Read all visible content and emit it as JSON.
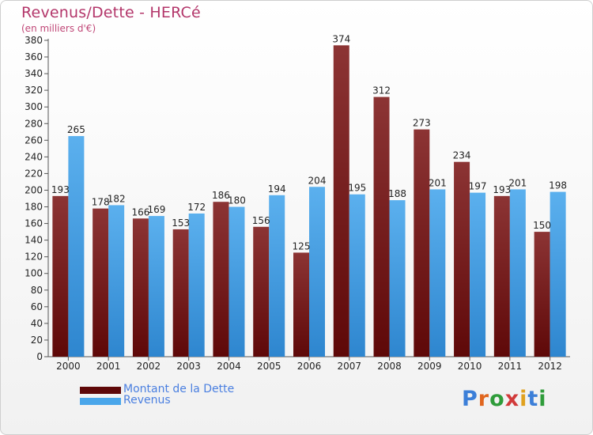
{
  "title": "Revenus/Dette - HERCé",
  "subtitle": "(en milliers d'€)",
  "logo": {
    "letters": [
      "P",
      "r",
      "o",
      "x",
      "i",
      "t",
      "i"
    ],
    "colors": [
      "#3c7fd8",
      "#e0661f",
      "#2f9c3a",
      "#d13a3a",
      "#e0a11f",
      "#3c7fd8",
      "#2f9c3a"
    ]
  },
  "colors": {
    "debt_dark": "#5e0808",
    "debt_light": "#8c3434",
    "revenue_dark": "#2e86cf",
    "revenue_light": "#5bb0ee"
  },
  "chart_data": {
    "type": "bar",
    "title": "Revenus/Dette - HERCé",
    "ylabel": "(en milliers d'€)",
    "xlabel": "",
    "ylim": [
      0,
      380
    ],
    "ytick_step": 20,
    "grid": false,
    "legend": "bottom-left",
    "categories": [
      "2000",
      "2001",
      "2002",
      "2003",
      "2004",
      "2005",
      "2006",
      "2007",
      "2008",
      "2009",
      "2010",
      "2011",
      "2012"
    ],
    "series": [
      {
        "name": "Montant de la Dette",
        "values": [
          193,
          178,
          166,
          153,
          186,
          156,
          125,
          374,
          312,
          273,
          234,
          193,
          150
        ]
      },
      {
        "name": "Revenus",
        "values": [
          265,
          182,
          169,
          172,
          180,
          194,
          204,
          195,
          188,
          201,
          197,
          201,
          198
        ]
      }
    ]
  }
}
